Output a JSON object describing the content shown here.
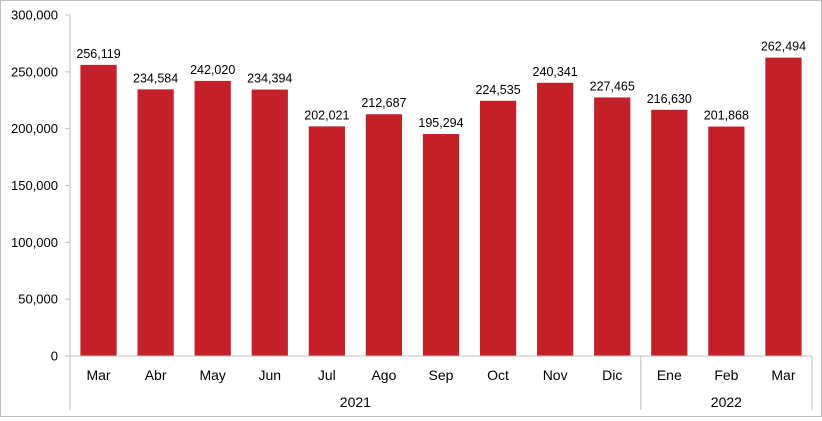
{
  "chart_data": {
    "type": "bar",
    "categories": [
      "Mar",
      "Abr",
      "May",
      "Jun",
      "Jul",
      "Ago",
      "Sep",
      "Oct",
      "Nov",
      "Dic",
      "Ene",
      "Feb",
      "Mar"
    ],
    "values": [
      256119,
      234584,
      242020,
      234394,
      202021,
      212687,
      195294,
      224535,
      240341,
      227465,
      216630,
      201868,
      262494
    ],
    "data_labels": [
      "256,119",
      "234,584",
      "242,020",
      "234,394",
      "202,021",
      "212,687",
      "195,294",
      "224,535",
      "240,341",
      "227,465",
      "216,630",
      "201,868",
      "262,494"
    ],
    "y_ticks": [
      0,
      50000,
      100000,
      150000,
      200000,
      250000,
      300000
    ],
    "y_tick_labels": [
      "0",
      "50,000",
      "100,000",
      "150,000",
      "200,000",
      "250,000",
      "300,000"
    ],
    "ylim": [
      0,
      300000
    ],
    "year_groups": [
      {
        "label": "2021",
        "start": 0,
        "end": 9
      },
      {
        "label": "2022",
        "start": 10,
        "end": 12
      }
    ],
    "bar_color": "#c4202a",
    "grid": false,
    "legend": "none"
  }
}
